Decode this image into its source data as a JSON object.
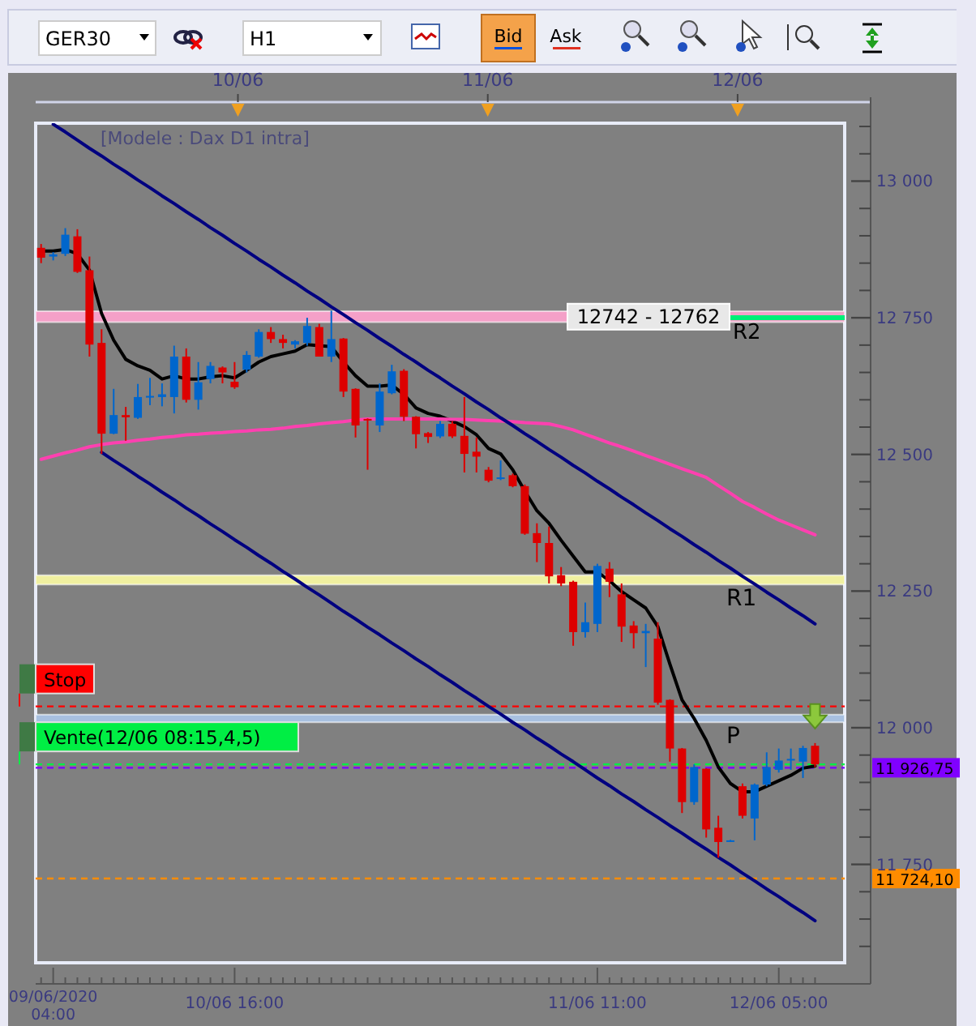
{
  "chart_data": {
    "type": "candlestick",
    "annotations": [
      "[Modele : Dax D1 intra]",
      "GER30",
      "H1",
      "Bid",
      "Ask",
      "10/06",
      "11/06",
      "12/06",
      "Vente(12/06 08:15,4,5)"
    ],
    "categories": [
      null,
      "09/06/2020 04:00",
      null,
      null,
      null,
      null,
      null,
      null,
      null,
      null,
      null,
      null,
      null,
      null,
      null,
      null,
      "10/06 16:00",
      null,
      null,
      null,
      null,
      null,
      null,
      null,
      null,
      null,
      null,
      null,
      null,
      null,
      null,
      null,
      null,
      null,
      null,
      null,
      null,
      null,
      null,
      null,
      null,
      null,
      null,
      null,
      null,
      null,
      "11/06 11:00",
      null,
      null,
      null,
      null,
      null,
      null,
      null,
      null,
      null,
      null,
      null,
      null,
      null,
      null,
      "12/06 05:00",
      null,
      null,
      null
    ],
    "ohlc": [
      [
        12878,
        12885,
        12850,
        12860
      ],
      [
        12862,
        12870,
        12855,
        12866
      ],
      [
        12867,
        12914,
        12863,
        12902
      ],
      [
        12899,
        12912,
        12832,
        12834
      ],
      [
        12837,
        12862,
        12679,
        12701
      ],
      [
        12704,
        12729,
        12501,
        12538
      ],
      [
        12538,
        12620,
        12537,
        12572
      ],
      [
        12572,
        12587,
        12525,
        12568
      ],
      [
        12567,
        12629,
        12565,
        12605
      ],
      [
        12604,
        12640,
        12590,
        12607
      ],
      [
        12605,
        12630,
        12588,
        12610
      ],
      [
        12605,
        12699,
        12575,
        12679
      ],
      [
        12679,
        12694,
        12595,
        12600
      ],
      [
        12600,
        12669,
        12582,
        12632
      ],
      [
        12638,
        12669,
        12630,
        12662
      ],
      [
        12659,
        12661,
        12630,
        12650
      ],
      [
        12633,
        12669,
        12620,
        12623
      ],
      [
        12655,
        12689,
        12650,
        12682
      ],
      [
        12679,
        12729,
        12677,
        12724
      ],
      [
        12724,
        12733,
        12704,
        12711
      ],
      [
        12711,
        12719,
        12694,
        12704
      ],
      [
        12701,
        12709,
        12694,
        12707
      ],
      [
        12704,
        12750,
        12699,
        12735
      ],
      [
        12733,
        12739,
        12679,
        12679
      ],
      [
        12679,
        12763,
        12669,
        12711
      ],
      [
        12712,
        12713,
        12605,
        12615
      ],
      [
        12620,
        12621,
        12531,
        12553
      ],
      [
        12565,
        12566,
        12472,
        12562
      ],
      [
        12553,
        12630,
        12541,
        12615
      ],
      [
        12612,
        12664,
        12610,
        12652
      ],
      [
        12653,
        12656,
        12561,
        12569
      ],
      [
        12569,
        12570,
        12511,
        12537
      ],
      [
        12539,
        12541,
        12521,
        12532
      ],
      [
        12533,
        12561,
        12530,
        12556
      ],
      [
        12556,
        12561,
        12530,
        12533
      ],
      [
        12534,
        12605,
        12467,
        12501
      ],
      [
        12505,
        12531,
        12467,
        12496
      ],
      [
        12472,
        12477,
        12449,
        12452
      ],
      [
        12455,
        12489,
        12453,
        12458
      ],
      [
        12462,
        12465,
        12440,
        12442
      ],
      [
        12442,
        12445,
        12353,
        12355
      ],
      [
        12356,
        12374,
        12303,
        12338
      ],
      [
        12338,
        12368,
        12264,
        12277
      ],
      [
        12279,
        12294,
        12259,
        12264
      ],
      [
        12267,
        12269,
        12150,
        12175
      ],
      [
        12175,
        12229,
        12165,
        12193
      ],
      [
        12190,
        12300,
        12175,
        12296
      ],
      [
        12291,
        12303,
        12239,
        12267
      ],
      [
        12244,
        12264,
        12157,
        12185
      ],
      [
        12187,
        12195,
        12145,
        12173
      ],
      [
        12173,
        12190,
        12111,
        12177
      ],
      [
        12163,
        12193,
        12042,
        12046
      ],
      [
        12051,
        12052,
        11938,
        11962
      ],
      [
        11962,
        11963,
        11844,
        11864
      ],
      [
        11864,
        11933,
        11859,
        11928
      ],
      [
        11925,
        11926,
        11799,
        11814
      ],
      [
        11817,
        11839,
        11762,
        11791
      ],
      [
        11792,
        11795,
        11791,
        11794
      ],
      [
        11893,
        11898,
        11834,
        11839
      ],
      [
        11834,
        11898,
        11794,
        11896
      ],
      [
        11896,
        11955,
        11893,
        11928
      ],
      [
        11923,
        11962,
        11918,
        11940
      ],
      [
        11940,
        11962,
        11923,
        11943
      ],
      [
        11938,
        11967,
        11908,
        11963
      ],
      [
        11967,
        11972,
        11928,
        11933
      ]
    ],
    "colors": [
      "#dd0000",
      "#0066cc",
      "#0066cc",
      "#dd0000",
      "#dd0000",
      "#dd0000",
      "#0066cc",
      "#dd0000",
      "#0066cc",
      "#0066cc",
      "#0066cc",
      "#0066cc",
      "#dd0000",
      "#0066cc",
      "#0066cc",
      "#dd0000",
      "#dd0000",
      "#0066cc",
      "#0066cc",
      "#dd0000",
      "#dd0000",
      "#0066cc",
      "#0066cc",
      "#dd0000",
      "#0066cc",
      "#dd0000",
      "#dd0000",
      "#dd0000",
      "#0066cc",
      "#0066cc",
      "#dd0000",
      "#dd0000",
      "#dd0000",
      "#0066cc",
      "#dd0000",
      "#dd0000",
      "#dd0000",
      "#dd0000",
      "#0066cc",
      "#dd0000",
      "#dd0000",
      "#dd0000",
      "#dd0000",
      "#dd0000",
      "#dd0000",
      "#0066cc",
      "#0066cc",
      "#dd0000",
      "#dd0000",
      "#dd0000",
      "#0066cc",
      "#dd0000",
      "#dd0000",
      "#dd0000",
      "#0066cc",
      "#dd0000",
      "#dd0000",
      "#0066cc",
      "#dd0000",
      "#0066cc",
      "#0066cc",
      "#0066cc",
      "#0066cc",
      "#0066cc",
      "#dd0000"
    ],
    "series": [
      {
        "type": "line",
        "color": "#000000",
        "values": [
          12872,
          12872,
          12875,
          12867,
          12837,
          12758,
          12709,
          12674,
          12662,
          12654,
          12638,
          12644,
          12638,
          12638,
          12642,
          12644,
          12640,
          12654,
          12669,
          12679,
          12684,
          12689,
          12701,
          12699,
          12697,
          12669,
          12644,
          12625,
          12625,
          12627,
          12610,
          12585,
          12575,
          12570,
          12561,
          12551,
          12536,
          12511,
          12501,
          12472,
          12433,
          12397,
          12374,
          12343,
          12314,
          12285,
          12285,
          12269,
          12249,
          12234,
          12219,
          12185,
          12116,
          12051,
          12017,
          11977,
          11928,
          11898,
          11883,
          11883,
          11893,
          11903,
          11913,
          11926,
          11930
        ]
      },
      {
        "type": "line",
        "color": "#ff40b0",
        "values": [
          12491,
          12497,
          12503,
          12508,
          12514,
          12518,
          12521,
          12523,
          12526,
          12528,
          12531,
          12533,
          12536,
          12537,
          12539,
          12540,
          12542,
          12543,
          12545,
          12546,
          12548,
          12551,
          12553,
          12556,
          12558,
          12560,
          12563,
          12565,
          12565,
          12565,
          12565,
          12565,
          12565,
          12565,
          12564,
          12564,
          12563,
          12562,
          12561,
          12560,
          12558,
          12557,
          12556,
          12551,
          12545,
          12537,
          12529,
          12521,
          12514,
          12506,
          12498,
          12490,
          12482,
          12474,
          12466,
          12458,
          12443,
          12429,
          12414,
          12403,
          12391,
          12380,
          12371,
          12362,
          12353
        ]
      },
      {
        "type": "line",
        "color": "#000080",
        "values": [
          null,
          13104,
          13090,
          13075,
          13060,
          13046,
          13031,
          13017,
          13002,
          12988,
          12973,
          12959,
          12944,
          12930,
          12915,
          12901,
          12886,
          12872,
          12857,
          12843,
          12828,
          12814,
          12799,
          12785,
          12770,
          12756,
          12741,
          12727,
          12712,
          12698,
          12683,
          12669,
          12654,
          12640,
          12625,
          12611,
          12596,
          12582,
          12567,
          12553,
          12538,
          12524,
          12509,
          12495,
          12480,
          12466,
          12451,
          12437,
          12422,
          12408,
          12393,
          12379,
          12364,
          12350,
          12335,
          12321,
          12306,
          12292,
          12277,
          12263,
          12248,
          12234,
          12219,
          12205,
          12190
        ]
      },
      {
        "type": "line",
        "color": "#000080",
        "values": [
          null,
          null,
          null,
          null,
          null,
          12504,
          12489,
          12475,
          12460,
          12446,
          12431,
          12417,
          12402,
          12388,
          12373,
          12359,
          12344,
          12330,
          12315,
          12301,
          12286,
          12272,
          12257,
          12243,
          12228,
          12213,
          12199,
          12184,
          12170,
          12155,
          12141,
          12126,
          12112,
          12097,
          12083,
          12068,
          12054,
          12039,
          12025,
          12010,
          11996,
          11981,
          11967,
          11952,
          11938,
          11923,
          11908,
          11894,
          11879,
          11865,
          11850,
          11836,
          11821,
          11807,
          11792,
          11778,
          11763,
          11749,
          11734,
          11720,
          11705,
          11691,
          11676,
          11662,
          11647
        ]
      }
    ],
    "ylim": [
      11570,
      13106
    ],
    "yticks": [
      {
        "value": 11750,
        "label": "11 750"
      },
      {
        "value": 12000,
        "label": "12 000"
      },
      {
        "value": 12250,
        "label": "12 250"
      },
      {
        "value": 12500,
        "label": "12 500"
      },
      {
        "value": 12750,
        "label": "12 750"
      },
      {
        "value": 13000,
        "label": "13 000"
      }
    ],
    "ref_lines": [
      {
        "axis": "y",
        "value": 12039,
        "label": "Stop",
        "color": "#ff0000",
        "line_style": "dashed"
      },
      {
        "axis": "y",
        "value": 11933,
        "color": "#00ee44",
        "line_style": "dashed"
      },
      {
        "axis": "y",
        "value": 11926.75,
        "label": "11 926,75",
        "color": "#8000ff",
        "line_style": "dashed"
      },
      {
        "axis": "y",
        "value": 11724.1,
        "label": "11 724,10",
        "color": "#ff8c00",
        "line_style": "dashed"
      },
      {
        "axis": "y",
        "value": 12750,
        "label": "R2",
        "color": "#00ee77",
        "line_style": "solid"
      }
    ],
    "bands": [
      {
        "axis": "y",
        "from": 12742,
        "to": 12762,
        "label": "12742 - 12762",
        "color": "#f4a0c8"
      },
      {
        "axis": "y",
        "from": 12262,
        "to": 12279,
        "label": "R1",
        "color": "#f0f0a0"
      },
      {
        "axis": "y",
        "from": 12010,
        "to": 12024,
        "label": "P",
        "color": "#a8c0e0"
      }
    ],
    "grid": false
  }
}
